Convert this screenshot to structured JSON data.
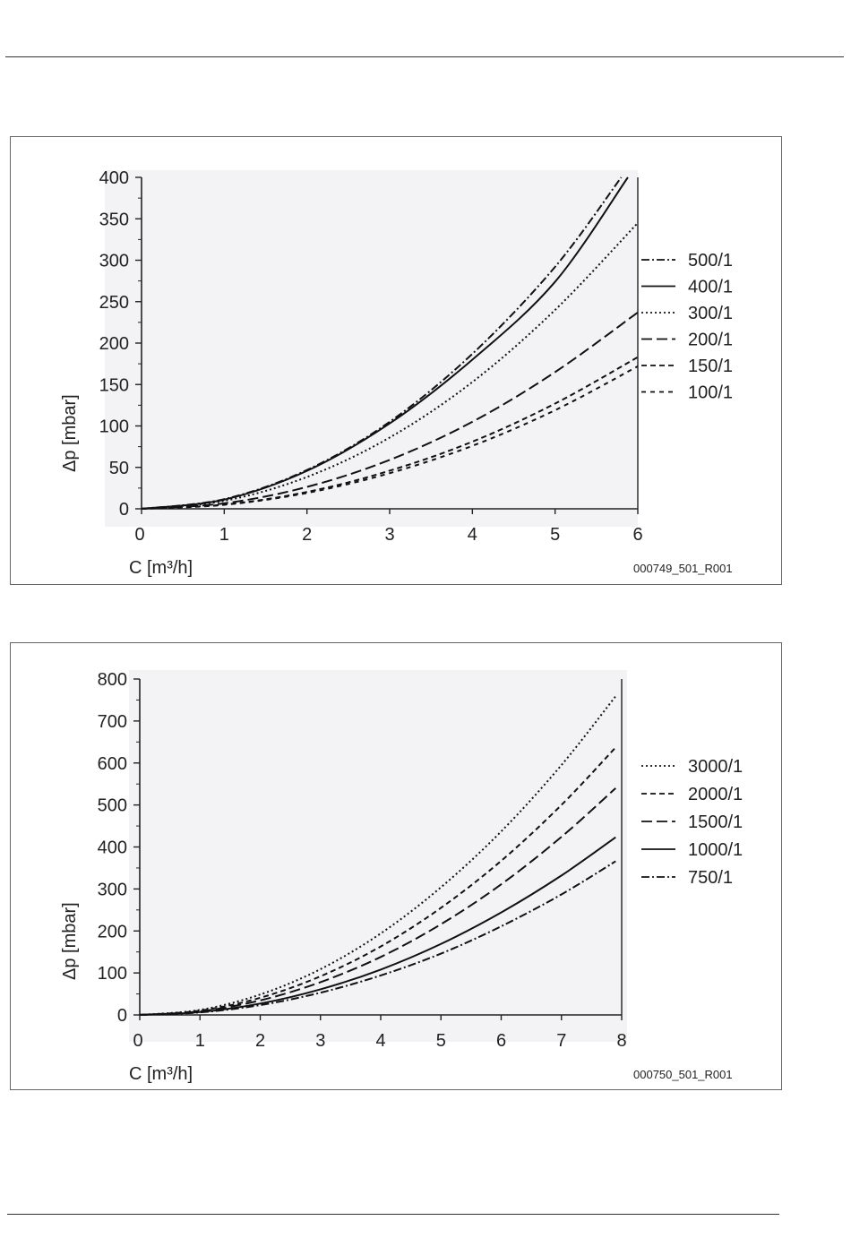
{
  "chart_data": [
    {
      "type": "line",
      "xlabel": "C [m³/h]",
      "ylabel": "Δp [mbar]",
      "xlim": [
        0,
        6
      ],
      "ylim": [
        0,
        400
      ],
      "xticks": [
        "0",
        "1",
        "2",
        "3",
        "4",
        "5",
        "6"
      ],
      "yticks": [
        "0",
        "50",
        "100",
        "150",
        "200",
        "250",
        "300",
        "350",
        "400"
      ],
      "legend_position": "right",
      "figure_id": "000749_501_R001",
      "series": [
        {
          "name": "500/1",
          "style": "dash-dot",
          "x": [
            0,
            1,
            2,
            3,
            4,
            5,
            5.8
          ],
          "y": [
            0,
            11.7,
            46.8,
            105,
            187,
            292,
            400
          ]
        },
        {
          "name": "400/1",
          "style": "solid",
          "x": [
            0,
            1,
            2,
            3,
            4,
            5,
            5.88
          ],
          "y": [
            0,
            11.1,
            45.8,
            103,
            180,
            274,
            400
          ]
        },
        {
          "name": "300/1",
          "style": "dotted",
          "x": [
            0,
            1,
            2,
            3,
            4,
            5,
            6
          ],
          "y": [
            0,
            9.6,
            38.4,
            86,
            153,
            240,
            345
          ]
        },
        {
          "name": "200/1",
          "style": "long-dash",
          "x": [
            0,
            1,
            2,
            3,
            4,
            5,
            6
          ],
          "y": [
            0,
            6.6,
            26.4,
            59,
            105,
            165,
            237
          ]
        },
        {
          "name": "150/1",
          "style": "dash",
          "x": [
            0,
            1,
            2,
            3,
            4,
            5,
            6
          ],
          "y": [
            0,
            5.1,
            20.3,
            46,
            81,
            127,
            183
          ]
        },
        {
          "name": "100/1",
          "style": "short-dash",
          "x": [
            0,
            1,
            2,
            3,
            4,
            5,
            6
          ],
          "y": [
            0,
            4.8,
            19.1,
            43,
            76,
            119,
            172
          ]
        }
      ]
    },
    {
      "type": "line",
      "xlabel": "C [m³/h]",
      "ylabel": "Δp [mbar]",
      "xlim": [
        0,
        8
      ],
      "ylim": [
        0,
        800
      ],
      "xticks": [
        "0",
        "1",
        "2",
        "3",
        "4",
        "5",
        "6",
        "7",
        "8"
      ],
      "yticks": [
        "0",
        "100",
        "200",
        "300",
        "400",
        "500",
        "600",
        "700",
        "800"
      ],
      "legend_position": "right",
      "figure_id": "000750_501_R001",
      "series": [
        {
          "name": "3000/1",
          "style": "dotted",
          "x": [
            0,
            1,
            2,
            3,
            4,
            5,
            6,
            7,
            7.9
          ],
          "y": [
            0,
            12,
            48.6,
            109,
            194,
            304,
            437,
            595,
            759
          ]
        },
        {
          "name": "2000/1",
          "style": "dash",
          "x": [
            0,
            1,
            2,
            3,
            4,
            5,
            6,
            7,
            7.9
          ],
          "y": [
            0,
            10.2,
            40.8,
            92,
            163,
            255,
            367,
            500,
            637
          ]
        },
        {
          "name": "1500/1",
          "style": "long-dash",
          "x": [
            0,
            1,
            2,
            3,
            4,
            5,
            6,
            7,
            7.9
          ],
          "y": [
            0,
            8.6,
            34.6,
            78,
            138,
            216,
            311,
            424,
            540
          ]
        },
        {
          "name": "1000/1",
          "style": "solid",
          "x": [
            0,
            1,
            2,
            3,
            4,
            5,
            6,
            7,
            7.9
          ],
          "y": [
            0,
            6.8,
            27.1,
            61,
            108,
            169,
            244,
            332,
            423
          ]
        },
        {
          "name": "750/1",
          "style": "dash-dot",
          "x": [
            0,
            1,
            2,
            3,
            4,
            5,
            6,
            7,
            7.9
          ],
          "y": [
            0,
            5.9,
            23.4,
            53,
            94,
            146,
            211,
            287,
            366
          ]
        }
      ]
    }
  ]
}
